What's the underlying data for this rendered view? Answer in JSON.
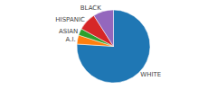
{
  "chart_data": {
    "type": "pie",
    "categories": [
      "WHITE",
      "A.I.",
      "ASIAN",
      "HISPANIC",
      "BLACK"
    ],
    "values": [
      76,
      4,
      3,
      8,
      9
    ]
  }
}
